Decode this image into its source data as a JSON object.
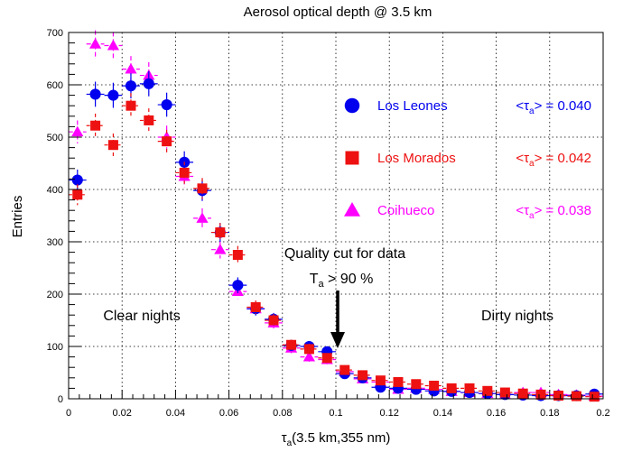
{
  "colors": {
    "los_leones": "#0000ee",
    "los_morados": "#ee1111",
    "coihueco": "#ff00ff",
    "grid": "#000000"
  },
  "chart_data": {
    "type": "scatter",
    "title": "Aerosol optical depth @ 3.5 km",
    "xlabel": {
      "main": "τ",
      "sub": "a",
      "rest": "(3.5 km,355 nm)"
    },
    "ylabel": "Entries",
    "xlim": [
      0,
      0.2
    ],
    "ylim": [
      0,
      700
    ],
    "xticks": [
      "0",
      "0.02",
      "0.04",
      "0.06",
      "0.08",
      "0.1",
      "0.12",
      "0.14",
      "0.16",
      "0.18",
      "0.2"
    ],
    "yticks": [
      "0",
      "100",
      "200",
      "300",
      "400",
      "500",
      "600",
      "700"
    ],
    "grid": true,
    "legend_position": "right",
    "series": [
      {
        "name": "Los Leones",
        "marker": "circle",
        "color": "#0000ee",
        "mean_label": {
          "pre": "<τ",
          "sub": "a",
          "post": "> = 0.040"
        },
        "x": [
          0.0033,
          0.01,
          0.0167,
          0.0233,
          0.03,
          0.0367,
          0.0433,
          0.05,
          0.0567,
          0.0633,
          0.07,
          0.0767,
          0.0833,
          0.09,
          0.0967,
          0.1033,
          0.11,
          0.1167,
          0.1233,
          0.13,
          0.1367,
          0.1433,
          0.15,
          0.1567,
          0.1633,
          0.17,
          0.1767,
          0.1833,
          0.19,
          0.1967
        ],
        "y": [
          418,
          582,
          580,
          598,
          602,
          562,
          452,
          398,
          318,
          217,
          172,
          152,
          102,
          100,
          90,
          48,
          40,
          22,
          20,
          18,
          15,
          14,
          12,
          10,
          8,
          7,
          6,
          6,
          6,
          9
        ],
        "err": [
          20,
          24,
          24,
          24,
          24,
          23,
          21,
          20,
          18,
          15,
          13,
          12,
          10,
          10,
          9,
          7,
          6,
          5,
          4,
          4,
          4,
          4,
          3,
          3,
          3,
          3,
          2,
          2,
          2,
          3
        ]
      },
      {
        "name": "Los Morados",
        "marker": "square",
        "color": "#ee1111",
        "mean_label": {
          "pre": "<τ",
          "sub": "a",
          "post": "> = 0.042"
        },
        "x": [
          0.0033,
          0.01,
          0.0167,
          0.0233,
          0.03,
          0.0367,
          0.0433,
          0.05,
          0.0567,
          0.0633,
          0.07,
          0.0767,
          0.0833,
          0.09,
          0.0967,
          0.1033,
          0.11,
          0.1167,
          0.1233,
          0.13,
          0.1367,
          0.1433,
          0.15,
          0.1567,
          0.1633,
          0.17,
          0.1767,
          0.1833,
          0.19,
          0.1967
        ],
        "y": [
          390,
          522,
          485,
          560,
          532,
          492,
          432,
          402,
          318,
          275,
          175,
          150,
          103,
          95,
          78,
          55,
          45,
          35,
          32,
          28,
          25,
          20,
          20,
          15,
          12,
          10,
          8,
          6,
          5,
          4
        ],
        "err": [
          20,
          23,
          22,
          24,
          23,
          22,
          21,
          20,
          18,
          17,
          13,
          12,
          10,
          10,
          9,
          7,
          7,
          6,
          6,
          5,
          5,
          4,
          4,
          4,
          3,
          3,
          3,
          2,
          2,
          2
        ]
      },
      {
        "name": "Coihueco",
        "marker": "triangle",
        "color": "#ff00ff",
        "mean_label": {
          "pre": "<τ",
          "sub": "a",
          "post": "> = 0.038"
        },
        "x": [
          0.0033,
          0.01,
          0.0167,
          0.0233,
          0.03,
          0.0367,
          0.0433,
          0.05,
          0.0567,
          0.0633,
          0.07,
          0.0767,
          0.0833,
          0.09,
          0.0967,
          0.1033,
          0.11,
          0.1167,
          0.1233,
          0.13,
          0.1367,
          0.1433,
          0.15,
          0.1567,
          0.1633,
          0.17,
          0.1767,
          0.1833,
          0.19,
          0.1967
        ],
        "y": [
          510,
          678,
          675,
          630,
          618,
          500,
          425,
          345,
          285,
          205,
          172,
          145,
          97,
          80,
          75,
          52,
          38,
          32,
          18,
          20,
          18,
          14,
          12,
          10,
          8,
          12,
          12,
          8,
          7,
          5
        ],
        "err": [
          22,
          26,
          26,
          25,
          25,
          22,
          21,
          19,
          17,
          14,
          13,
          12,
          10,
          9,
          9,
          7,
          6,
          6,
          4,
          4,
          4,
          4,
          3,
          3,
          3,
          3,
          3,
          3,
          2,
          2
        ]
      }
    ],
    "annotations": {
      "quality_cut_line1": "Quality cut for data",
      "quality_cut_line2_main": "T",
      "quality_cut_line2_sub": "a",
      "quality_cut_line2_rest": " > 90 %",
      "clear": "Clear nights",
      "dirty": "Dirty nights"
    }
  }
}
